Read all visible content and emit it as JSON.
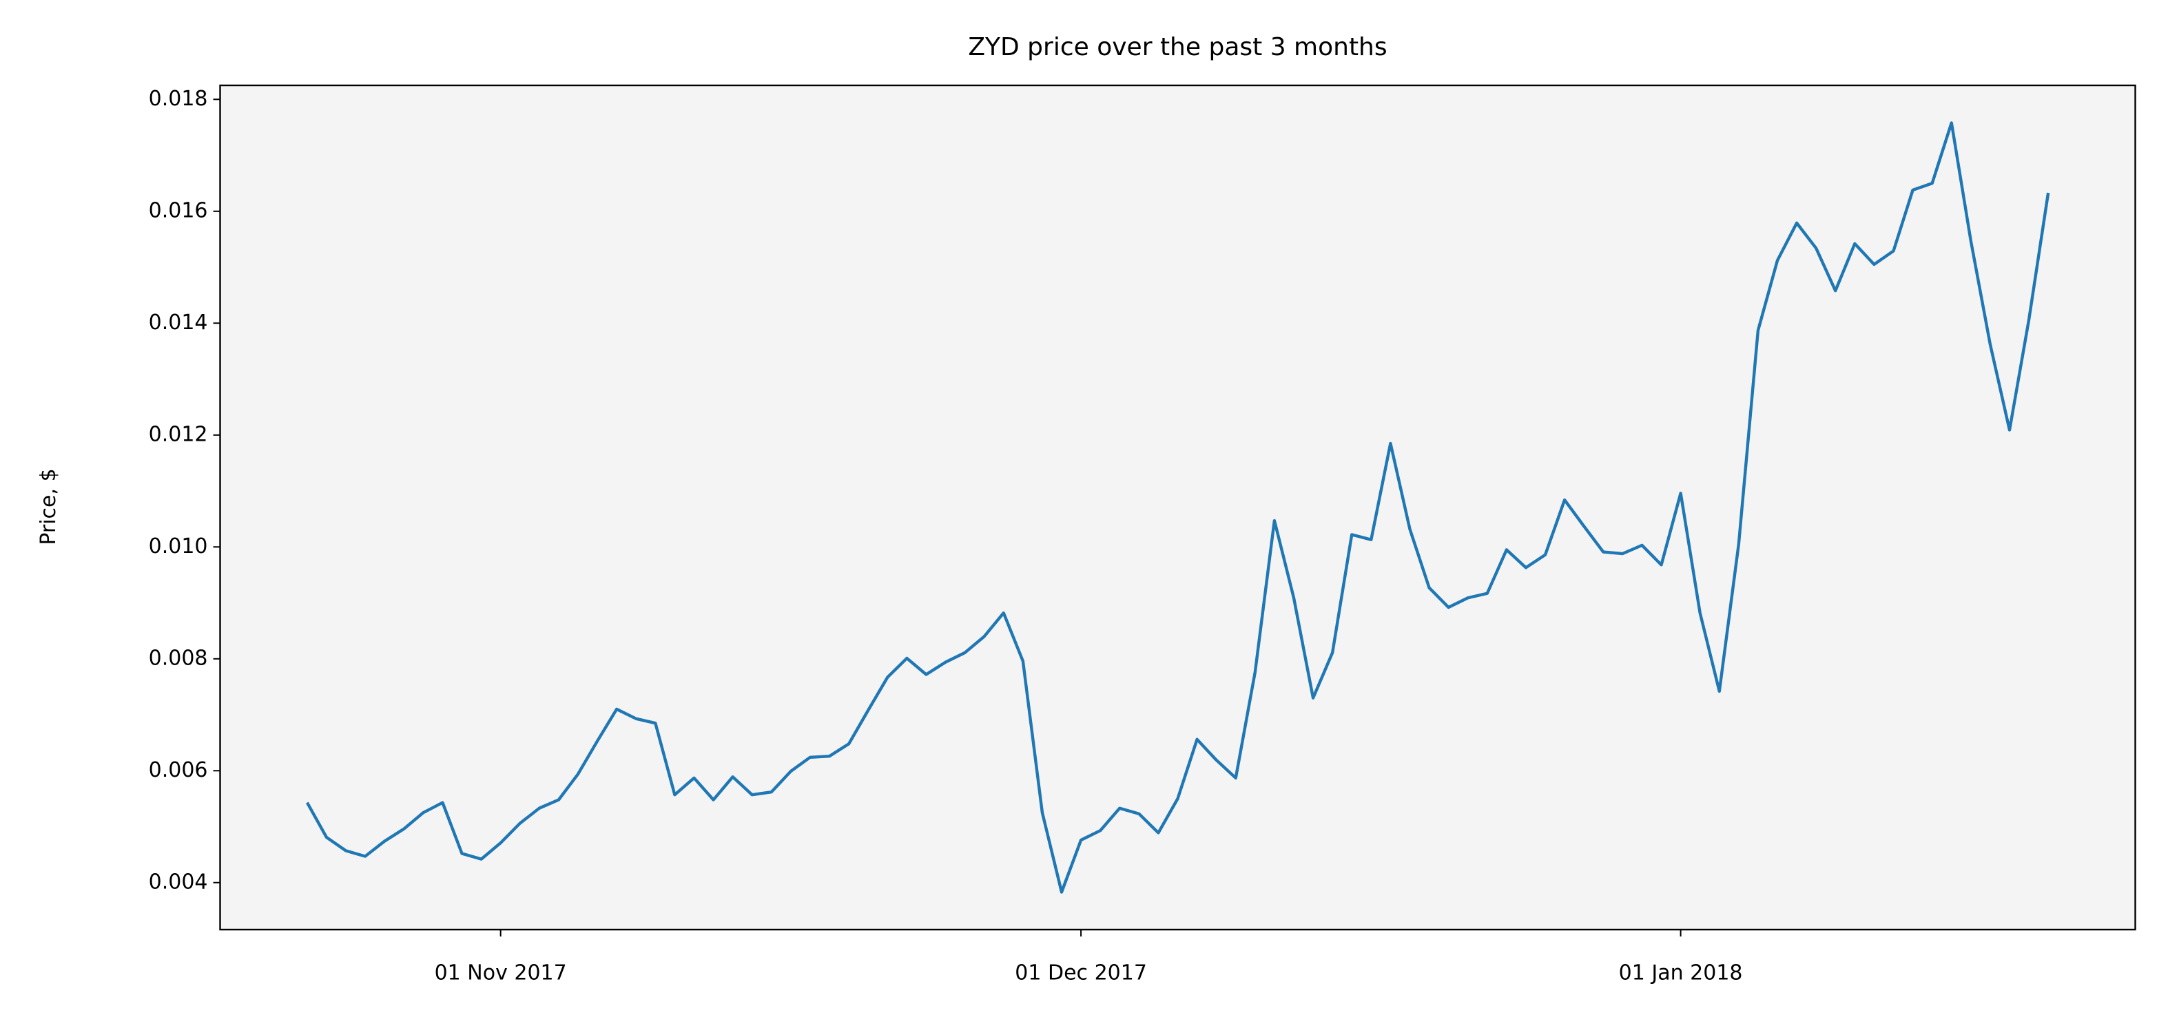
{
  "chart_data": {
    "type": "line",
    "title": "ZYD price over the past 3 months",
    "y_label": "Price, $",
    "color": "#1f77b4",
    "background": "#f4f4f4",
    "x": [
      "2017-10-22",
      "2017-10-23",
      "2017-10-24",
      "2017-10-25",
      "2017-10-26",
      "2017-10-27",
      "2017-10-28",
      "2017-10-29",
      "2017-10-30",
      "2017-10-31",
      "2017-11-01",
      "2017-11-02",
      "2017-11-03",
      "2017-11-04",
      "2017-11-05",
      "2017-11-06",
      "2017-11-07",
      "2017-11-08",
      "2017-11-09",
      "2017-11-10",
      "2017-11-11",
      "2017-11-12",
      "2017-11-13",
      "2017-11-14",
      "2017-11-15",
      "2017-11-16",
      "2017-11-17",
      "2017-11-18",
      "2017-11-19",
      "2017-11-20",
      "2017-11-21",
      "2017-11-22",
      "2017-11-23",
      "2017-11-24",
      "2017-11-25",
      "2017-11-26",
      "2017-11-27",
      "2017-11-28",
      "2017-11-29",
      "2017-11-30",
      "2017-12-01",
      "2017-12-02",
      "2017-12-03",
      "2017-12-04",
      "2017-12-05",
      "2017-12-06",
      "2017-12-07",
      "2017-12-08",
      "2017-12-09",
      "2017-12-10",
      "2017-12-11",
      "2017-12-12",
      "2017-12-13",
      "2017-12-14",
      "2017-12-15",
      "2017-12-16",
      "2017-12-17",
      "2017-12-18",
      "2017-12-19",
      "2017-12-20",
      "2017-12-21",
      "2017-12-22",
      "2017-12-23",
      "2017-12-24",
      "2017-12-25",
      "2017-12-26",
      "2017-12-27",
      "2017-12-28",
      "2017-12-29",
      "2017-12-30",
      "2017-12-31",
      "2018-01-01",
      "2018-01-02",
      "2018-01-03",
      "2018-01-04",
      "2018-01-05",
      "2018-01-06",
      "2018-01-07",
      "2018-01-08",
      "2018-01-09",
      "2018-01-10",
      "2018-01-11",
      "2018-01-12",
      "2018-01-13",
      "2018-01-14",
      "2018-01-15",
      "2018-01-16",
      "2018-01-17",
      "2018-01-18",
      "2018-01-19",
      "2018-01-20"
    ],
    "values": [
      0.00543,
      0.00481,
      0.00457,
      0.00447,
      0.00474,
      0.00496,
      0.00525,
      0.00543,
      0.00452,
      0.00442,
      0.00471,
      0.00506,
      0.00533,
      0.00548,
      0.00594,
      0.00653,
      0.0071,
      0.00693,
      0.00685,
      0.00557,
      0.00587,
      0.00548,
      0.00589,
      0.00557,
      0.00562,
      0.00599,
      0.00624,
      0.00626,
      0.00648,
      0.00708,
      0.00767,
      0.00801,
      0.00772,
      0.00794,
      0.00811,
      0.0084,
      0.00882,
      0.00796,
      0.00525,
      0.00383,
      0.00476,
      0.00493,
      0.00533,
      0.00523,
      0.00489,
      0.0055,
      0.00656,
      0.00619,
      0.00587,
      0.00776,
      0.01047,
      0.00909,
      0.0073,
      0.00811,
      0.01022,
      0.01013,
      0.01185,
      0.01032,
      0.00927,
      0.00892,
      0.00909,
      0.00917,
      0.00995,
      0.00963,
      0.00986,
      0.01084,
      0.01037,
      0.00991,
      0.00988,
      0.01003,
      0.00968,
      0.01096,
      0.00882,
      0.00742,
      0.01005,
      0.01387,
      0.01512,
      0.01579,
      0.01534,
      0.01458,
      0.01542,
      0.01505,
      0.01529,
      0.01638,
      0.0165,
      0.01758,
      0.01547,
      0.01362,
      0.01209,
      0.01406,
      0.01633
    ],
    "xlim": [
      "2017-10-17T12:00Z",
      "2018-01-24T12:00Z"
    ],
    "xticks": [
      {
        "value": "2017-11-01",
        "label": "01 Nov 2017"
      },
      {
        "value": "2017-12-01",
        "label": "01 Dec 2017"
      },
      {
        "value": "2018-01-01",
        "label": "01 Jan 2018"
      }
    ],
    "ylim": [
      0.00316,
      0.01825
    ],
    "yticks": [
      0.004,
      0.006,
      0.008,
      {
        "value": 0.01,
        "label": "0.010"
      },
      0.012,
      0.014,
      0.016,
      0.018
    ]
  }
}
